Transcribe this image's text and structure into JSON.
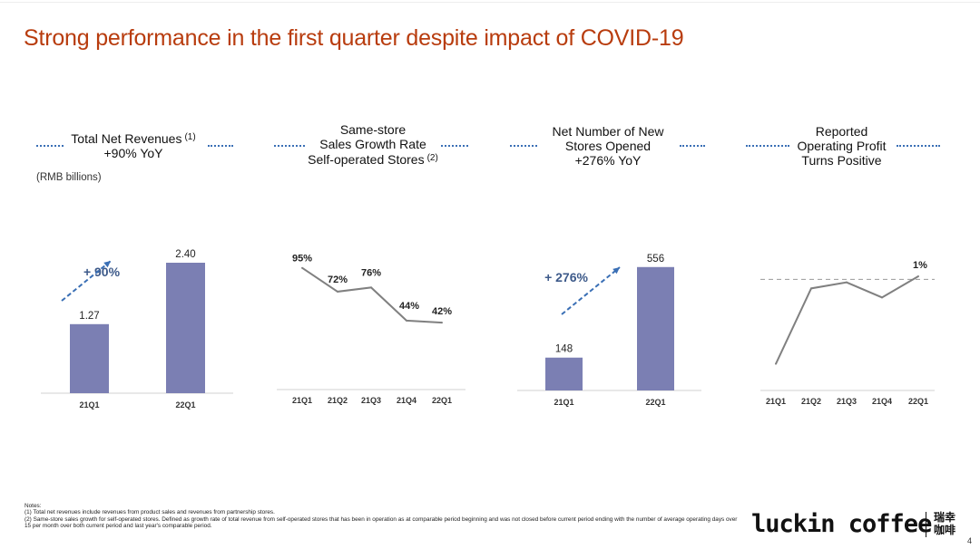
{
  "title": "Strong performance in the first quarter despite impact of COVID-19",
  "panels": [
    {
      "lines": [
        "Total Net Revenues",
        "+90% YoY"
      ],
      "note": "(1)"
    },
    {
      "lines": [
        "Same-store",
        "Sales Growth Rate",
        "Self-operated Stores"
      ],
      "note": "(2)"
    },
    {
      "lines": [
        "Net Number of New",
        "Stores Opened",
        "+276% YoY"
      ]
    },
    {
      "lines": [
        "Reported",
        "Operating Profit",
        "Turns Positive"
      ]
    }
  ],
  "unit_label": "(RMB billions)",
  "chart_data": [
    {
      "type": "bar",
      "name": "Total Net Revenues",
      "categories": [
        "21Q1",
        "22Q1"
      ],
      "values": [
        1.27,
        2.4
      ],
      "labels": [
        "1.27",
        "2.40"
      ],
      "annotation": "+ 90%",
      "ylim": [
        0,
        2.6
      ]
    },
    {
      "type": "line",
      "name": "Same-store Sales Growth Rate",
      "categories": [
        "21Q1",
        "21Q2",
        "21Q3",
        "21Q4",
        "22Q1"
      ],
      "values": [
        95,
        72,
        76,
        44,
        42
      ],
      "labels": [
        "95%",
        "72%",
        "76%",
        "44%",
        "42%"
      ],
      "ylim": [
        0,
        100
      ]
    },
    {
      "type": "bar",
      "name": "Net Number of New Stores Opened",
      "categories": [
        "21Q1",
        "22Q1"
      ],
      "values": [
        148,
        556
      ],
      "labels": [
        "148",
        "556"
      ],
      "annotation": "+ 276%",
      "ylim": [
        0,
        600
      ]
    },
    {
      "type": "line",
      "name": "Reported Operating Profit",
      "categories": [
        "21Q1",
        "21Q2",
        "21Q3",
        "21Q4",
        "22Q1"
      ],
      "values": [
        -28,
        -3,
        -1,
        -6,
        1
      ],
      "labels": [
        "",
        "",
        "",
        "",
        "1%"
      ],
      "ylim": [
        -35,
        4
      ]
    }
  ],
  "notes": {
    "heading": "Notes:",
    "items": [
      "(1)    Total net revenues include revenues from product sales and revenues from partnership stores.",
      "(2)    Same-store sales growth for self-operated stores. Defined as growth rate of total revenue from self-operated stores that has been in operation as at comparable period beginning and was not closed before current period ending with the number of average operating days over 15 per month over both current period and last year's comparable period."
    ]
  },
  "logo": {
    "text": "luckin coffee",
    "cn": "瑞幸咖啡"
  },
  "page_number": "4",
  "colors": {
    "title": "#b83c0e",
    "bar": "#7b7fb3",
    "line": "#808080",
    "arrow": "#3a6fb5",
    "annotation": "#3d5a8a"
  }
}
